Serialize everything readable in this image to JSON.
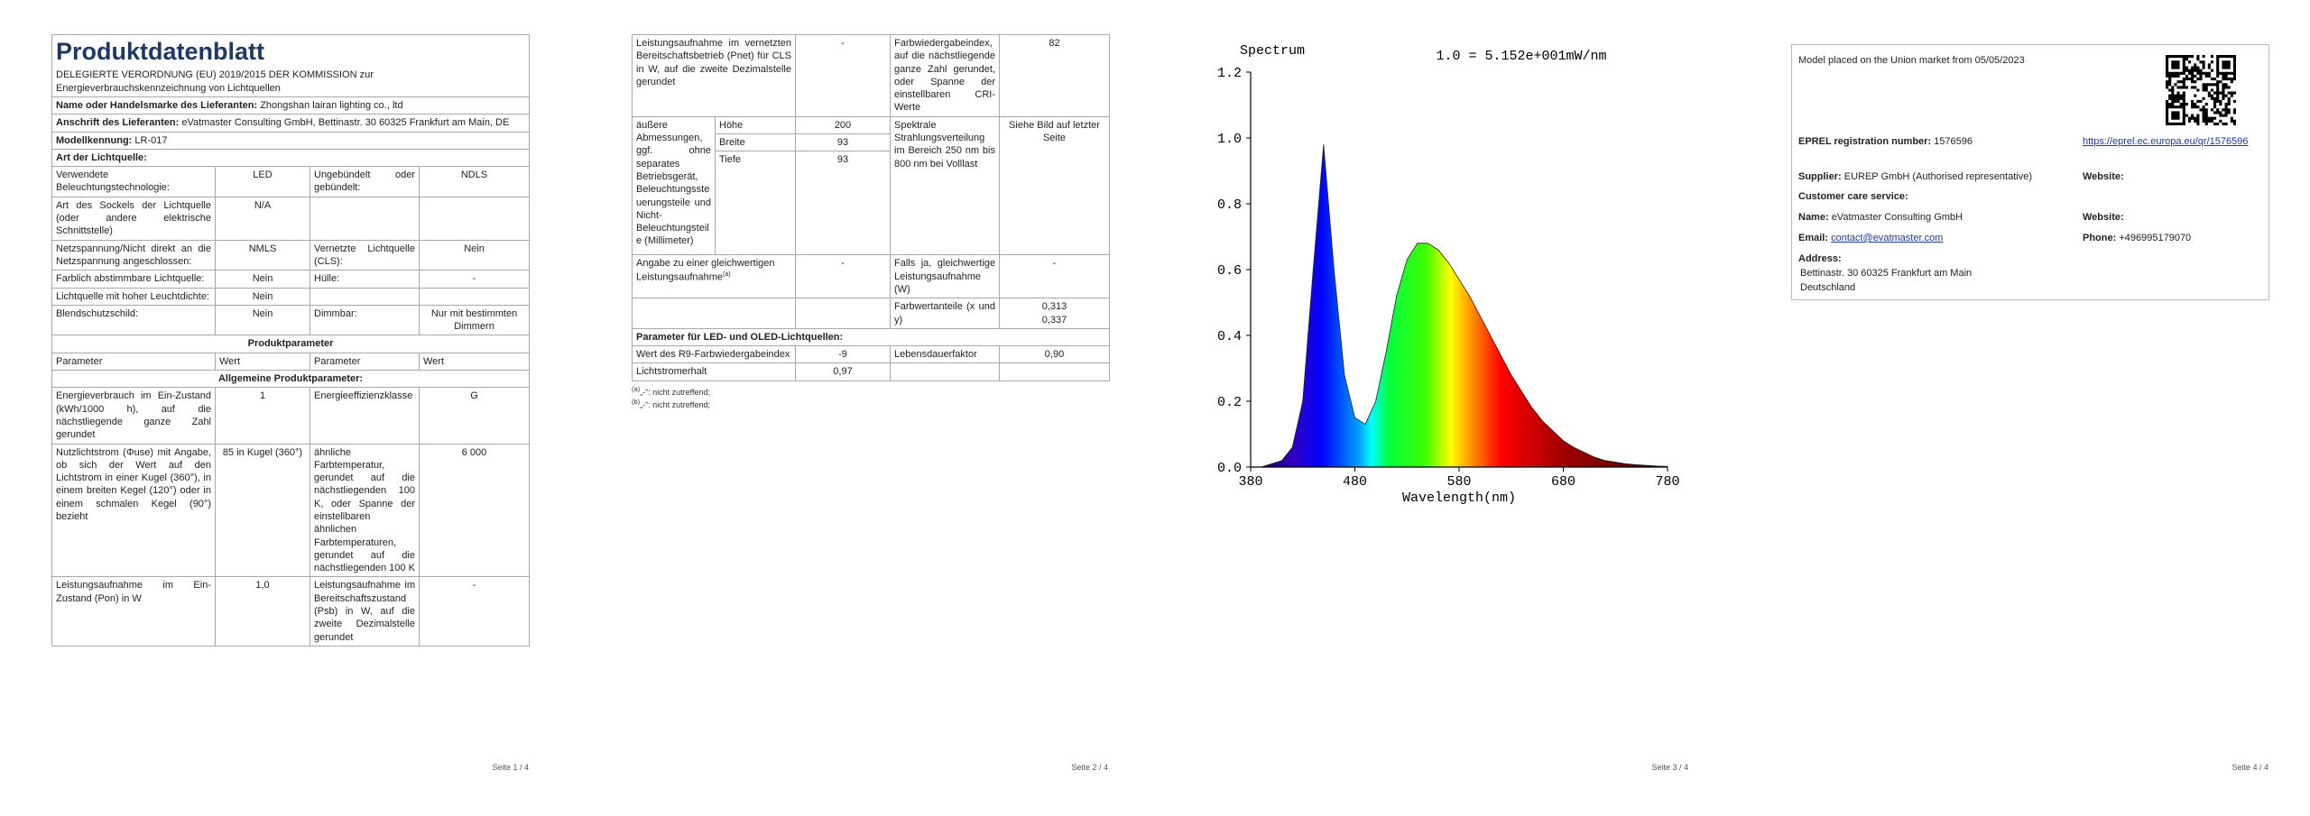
{
  "page1": {
    "title": "Produktdatenblatt",
    "subtitle": "DELEGIERTE VERORDNUNG (EU) 2019/2015 DER KOMMISSION zur Energieverbrauchskennzeichnung von Lichtquellen",
    "supplier_rows": [
      [
        "Name oder Handelsmarke des Lieferanten:",
        "Zhongshan lairan lighting co., ltd"
      ],
      [
        "Anschrift des Lieferanten:",
        "eVatmaster Consulting GmbH, Bettinastr. 30 60325 Frankfurt am Main, DE"
      ],
      [
        "Modellkennung:",
        "LR-017"
      ]
    ],
    "type_header": "Art der Lichtquelle:",
    "type_rows": [
      [
        "Verwendete Beleuchtungstechnologie:",
        "LED",
        "Ungebündelt oder gebündelt:",
        "NDLS"
      ],
      [
        "Art des Sockels der Lichtquelle (oder andere elektrische Schnittstelle)",
        "N/A",
        null,
        null
      ],
      [
        "Netzspannung/Nicht direkt an die Netzspannung angeschlossen:",
        "NMLS",
        "Vernetzte Lichtquelle (CLS):",
        "Nein"
      ],
      [
        "Farblich abstimmbare Lichtquelle:",
        "Nein",
        "Hülle:",
        "-"
      ],
      [
        "Lichtquelle mit hoher Leuchtdichte:",
        "Nein",
        null,
        null
      ],
      [
        "Blendschutzschild:",
        "Nein",
        "Dimmbar:",
        "Nur mit bestimmten Dimmern"
      ]
    ],
    "params_header": "Produktparameter",
    "columns": [
      "Parameter",
      "Wert",
      "Parameter",
      "Wert"
    ],
    "general_header": "Allgemeine Produktparameter:",
    "general_rows": [
      [
        "Energieverbrauch im Ein-Zustand (kWh/1000 h), auf die nächstliegende ganze Zahl gerundet",
        "1",
        "Energieeffizienzklasse",
        "G"
      ],
      [
        "Nutzlichtstrom (Φuse) mit Angabe, ob sich der Wert auf den Lichtstrom in einer Kugel (360°), in einem breiten Kegel (120°) oder in einem schmalen Kegel (90°) bezieht",
        "85 in Kugel (360°)",
        "ähnliche Farbtemperatur, gerundet auf die nächstliegenden 100 K, oder Spanne der einstellbaren ähnlichen Farbtemperaturen, gerundet auf die nächstliegenden 100 K",
        "6 000"
      ],
      [
        "Leistungsaufnahme im Ein-Zustand (Pon) in W",
        "1,0",
        "Leistungsaufnahme im Bereitschaftszustand (Psb) in W, auf die zweite Dezimalstelle gerundet",
        "-"
      ]
    ]
  },
  "page2": {
    "row_net": [
      "Leistungsaufnahme im vernetzten Bereitschaftsbetrieb (Pnet) für CLS in W, auf die zweite Dezimalstelle gerundet",
      "-",
      "Farbwiedergabeindex, auf die nächstliegende ganze Zahl gerundet, oder Spanne der einstellbaren CRI-Werte",
      "82"
    ],
    "dimensions": {
      "label": "äußere Abmessungen, ggf. ohne separates Betriebsgerät, Beleuchtungssteuerungsteile und Nicht-Beleuchtungsteile (Millimeter)",
      "items": [
        [
          "Höhe",
          "200"
        ],
        [
          "Breite",
          "93"
        ],
        [
          "Tiefe",
          "93"
        ]
      ],
      "param": "Spektrale Strahlungsverteilung im Bereich 250 nm bis 800 nm bei Volllast",
      "value": "Siehe Bild auf letzter Seite"
    },
    "row_equiv": {
      "label": "Angabe zu einer gleichwertigen Leistungsaufnahme",
      "note": "(a)",
      "value": "-",
      "param": "Falls ja, gleichwertige Leistungsaufnahme (W)",
      "param_value": "-"
    },
    "row_chroma": {
      "param": "Farbwertanteile (x und y)",
      "values": [
        "0,313",
        "0,337"
      ]
    },
    "led_header": "Parameter für LED- und OLED-Lichtquellen:",
    "led_rows": [
      [
        "Wert des R9-Farbwiedergabeindex",
        "-9",
        "Lebensdauerfaktor",
        "0,90"
      ],
      [
        "Lichtstromerhalt",
        "0,97",
        null,
        null
      ]
    ],
    "notes": [
      {
        "marker": "(a)",
        "text": "„-“: nicht zutreffend;"
      },
      {
        "marker": "(b)",
        "text": "„-“: nicht zutreffend;"
      }
    ]
  },
  "chart_data": {
    "type": "area",
    "title": "1.0 = 5.152e+001mW/nm",
    "ylabel": "Spectrum",
    "xlabel": "Wavelength(nm)",
    "x": [
      380,
      390,
      400,
      410,
      420,
      430,
      440,
      450,
      460,
      470,
      480,
      490,
      500,
      510,
      520,
      530,
      540,
      550,
      560,
      570,
      580,
      590,
      600,
      610,
      620,
      630,
      640,
      650,
      660,
      670,
      680,
      690,
      700,
      710,
      720,
      730,
      740,
      750,
      760,
      770,
      780
    ],
    "values": [
      0,
      0,
      0.01,
      0.02,
      0.06,
      0.2,
      0.6,
      0.98,
      0.6,
      0.28,
      0.15,
      0.13,
      0.2,
      0.35,
      0.52,
      0.63,
      0.68,
      0.68,
      0.66,
      0.62,
      0.57,
      0.52,
      0.46,
      0.4,
      0.34,
      0.28,
      0.23,
      0.18,
      0.14,
      0.11,
      0.08,
      0.06,
      0.045,
      0.03,
      0.02,
      0.015,
      0.01,
      0.007,
      0.005,
      0.003,
      0.002
    ],
    "xlim": [
      380,
      780
    ],
    "ylim": [
      0,
      1.2
    ],
    "xticks": [
      380,
      480,
      580,
      680,
      780
    ],
    "yticks": [
      {
        "value": 0,
        "label": "0.0"
      },
      0.2,
      0.4,
      0.6,
      0.8,
      {
        "value": 1,
        "label": "1.0"
      },
      1.2
    ]
  },
  "page4": {
    "placed": "Model placed on the Union market from 05/05/2023",
    "eprel_label": "EPREL registration number:",
    "eprel_number": "1576596",
    "eprel_link": "https://eprel.ec.europa.eu/qr/1576596",
    "supplier_label": "Supplier:",
    "supplier": "EUREP GmbH (Authorised representative)",
    "website_label_1": "Website:",
    "care_label": "Customer care service:",
    "name_label": "Name:",
    "name": "eVatmaster Consulting GmbH",
    "website_label_2": "Website:",
    "email_label": "Email:",
    "email": "contact@evatmaster.com",
    "phone_label": "Phone:",
    "phone": "+496995179070",
    "address_label": "Address:",
    "address": [
      "Bettinastr. 30 60325 Frankfurt am Main",
      "Deutschland"
    ]
  },
  "footers": [
    "Seite 1 / 4",
    "Seite 2 / 4",
    "Seite 3 / 4",
    "Seite 4 / 4"
  ]
}
